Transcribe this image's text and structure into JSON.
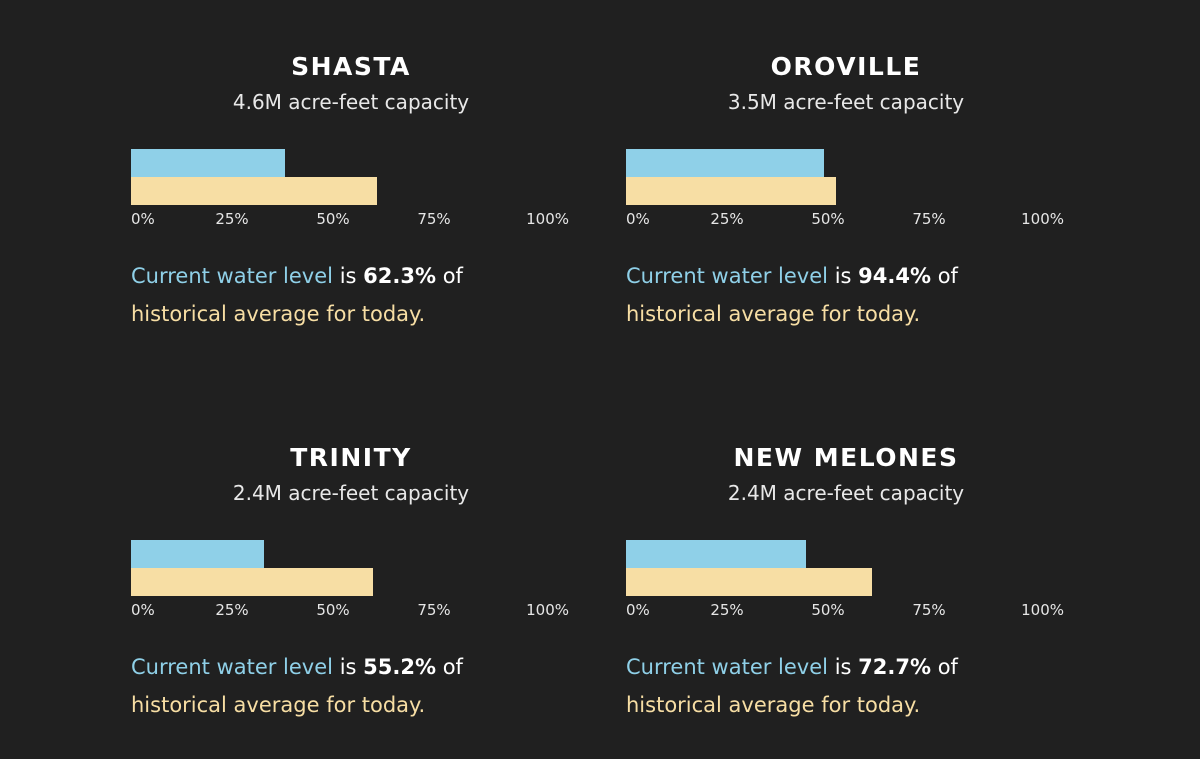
{
  "colors": {
    "background": "#202020",
    "current": "#8fd0e8",
    "historical": "#f7dea4",
    "text": "#ffffff"
  },
  "labels": {
    "current_phrase": "Current water level",
    "is_word": "is",
    "of_word": "of",
    "historical_phrase": "historical average for today."
  },
  "chart_data": [
    {
      "type": "bar",
      "orientation": "horizontal",
      "title": "SHASTA",
      "subtitle": "4.6M acre-feet capacity",
      "xlim": [
        0,
        100
      ],
      "ticks": [
        "0%",
        "25%",
        "50%",
        "75%",
        "100%"
      ],
      "series": [
        {
          "key": "current",
          "values": [
            38
          ]
        },
        {
          "key": "historical",
          "values": [
            61
          ]
        }
      ],
      "pct_text": "62.3%",
      "grid": false
    },
    {
      "type": "bar",
      "orientation": "horizontal",
      "title": "OROVILLE",
      "subtitle": "3.5M acre-feet capacity",
      "xlim": [
        0,
        100
      ],
      "ticks": [
        "0%",
        "25%",
        "50%",
        "75%",
        "100%"
      ],
      "series": [
        {
          "key": "current",
          "values": [
            49
          ]
        },
        {
          "key": "historical",
          "values": [
            52
          ]
        }
      ],
      "pct_text": "94.4%",
      "grid": false
    },
    {
      "type": "bar",
      "orientation": "horizontal",
      "title": "TRINITY",
      "subtitle": "2.4M acre-feet capacity",
      "xlim": [
        0,
        100
      ],
      "ticks": [
        "0%",
        "25%",
        "50%",
        "75%",
        "100%"
      ],
      "series": [
        {
          "key": "current",
          "values": [
            33
          ]
        },
        {
          "key": "historical",
          "values": [
            60
          ]
        }
      ],
      "pct_text": "55.2%",
      "grid": false
    },
    {
      "type": "bar",
      "orientation": "horizontal",
      "title": "NEW MELONES",
      "subtitle": "2.4M acre-feet capacity",
      "xlim": [
        0,
        100
      ],
      "ticks": [
        "0%",
        "25%",
        "50%",
        "75%",
        "100%"
      ],
      "series": [
        {
          "key": "current",
          "values": [
            44.5
          ]
        },
        {
          "key": "historical",
          "values": [
            61
          ]
        }
      ],
      "pct_text": "72.7%",
      "grid": false
    }
  ]
}
